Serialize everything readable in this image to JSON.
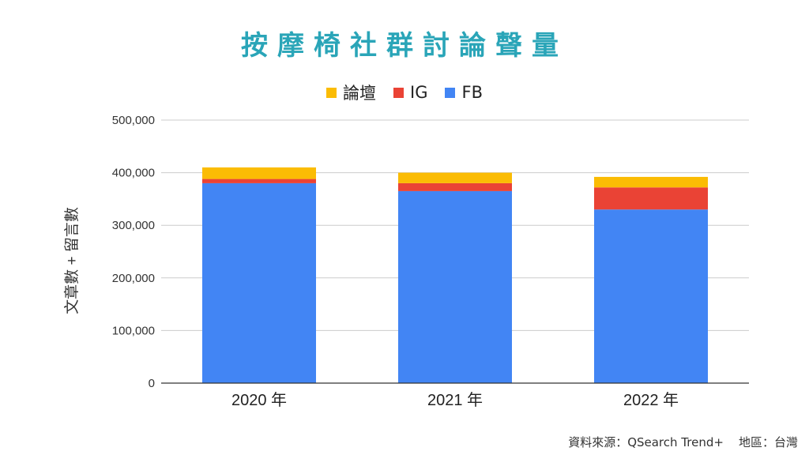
{
  "chart_data": {
    "type": "bar",
    "stacked": true,
    "title": "按摩椅社群討論聲量",
    "ylabel": "文章數 + 留言數",
    "categories": [
      "2020 年",
      "2021 年",
      "2022 年"
    ],
    "series": [
      {
        "name": "FB",
        "color": "#4285f4",
        "values": [
          380000,
          365000,
          330000
        ]
      },
      {
        "name": "IG",
        "color": "#ea4335",
        "values": [
          8000,
          15000,
          42000
        ]
      },
      {
        "name": "論壇",
        "color": "#fbbc04",
        "values": [
          22000,
          20000,
          20000
        ]
      }
    ],
    "legend_order": [
      "論壇",
      "IG",
      "FB"
    ],
    "ylim": [
      0,
      500000
    ],
    "yticks": [
      0,
      100000,
      200000,
      300000,
      400000,
      500000
    ],
    "ytick_labels": [
      "0",
      "100,000",
      "200,000",
      "300,000",
      "400,000",
      "500,000"
    ],
    "grid": true,
    "legend_position": "top"
  },
  "source": "資料來源：QSearch Trend+    地區：台灣"
}
